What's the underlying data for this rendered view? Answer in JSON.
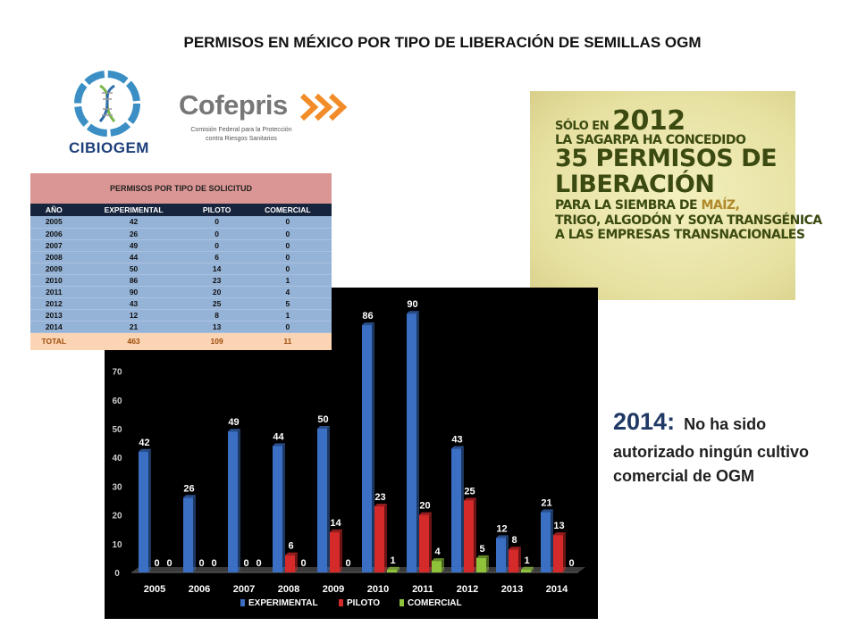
{
  "title": "PERMISOS EN MÉXICO POR TIPO DE LIBERACIÓN DE SEMILLAS OGM",
  "logos": {
    "cibiogem": "CIBIOGEM",
    "cofepris": "Cofepris",
    "cofepris_sub1": "Comisión Federal para la Protección",
    "cofepris_sub2": "contra Riesgos Sanitarios"
  },
  "poster": {
    "line1_prefix": "SÓLO EN",
    "line1_year": "2012",
    "line2": "LA SAGARPA HA CONCEDIDO",
    "line3": "35 PERMISOS DE",
    "line4": "LIBERACIÓN",
    "line5_prefix": "PARA LA SIEMBRA DE ",
    "line5_highlight": "MAÍZ,",
    "line6": "TRIGO, ALGODÓN Y SOYA TRANSGÉNICA",
    "line7": "A LAS EMPRESAS TRANSNACIONALES"
  },
  "table": {
    "caption": "PERMISOS POR TIPO DE SOLICITUD",
    "headers": [
      "AÑO",
      "EXPERIMENTAL",
      "PILOTO",
      "COMERCIAL"
    ],
    "rows": [
      [
        "2005",
        "42",
        "0",
        "0"
      ],
      [
        "2006",
        "26",
        "0",
        "0"
      ],
      [
        "2007",
        "49",
        "0",
        "0"
      ],
      [
        "2008",
        "44",
        "6",
        "0"
      ],
      [
        "2009",
        "50",
        "14",
        "0"
      ],
      [
        "2010",
        "86",
        "23",
        "1"
      ],
      [
        "2011",
        "90",
        "20",
        "4"
      ],
      [
        "2012",
        "43",
        "25",
        "5"
      ],
      [
        "2013",
        "12",
        "8",
        "1"
      ],
      [
        "2014",
        "21",
        "13",
        "0"
      ]
    ],
    "total": [
      "TOTAL",
      "463",
      "109",
      "11"
    ]
  },
  "note": {
    "year": "2014:",
    "text": "No ha sido autorizado ningún cultivo comercial de OGM"
  },
  "chart_data": {
    "type": "bar",
    "categories": [
      "2005",
      "2006",
      "2007",
      "2008",
      "2009",
      "2010",
      "2011",
      "2012",
      "2013",
      "2014"
    ],
    "series": [
      {
        "name": "EXPERIMENTAL",
        "values": [
          42,
          26,
          49,
          44,
          50,
          86,
          90,
          43,
          12,
          21
        ],
        "color": "#3a6fc4"
      },
      {
        "name": "PILOTO",
        "values": [
          0,
          0,
          0,
          6,
          14,
          23,
          20,
          25,
          8,
          13
        ],
        "color": "#d42a2a"
      },
      {
        "name": "COMERCIAL",
        "values": [
          0,
          0,
          0,
          0,
          0,
          1,
          4,
          5,
          1,
          0
        ],
        "color": "#8fc33a"
      }
    ],
    "y_ticks": [
      "0",
      "10",
      "20",
      "30",
      "40",
      "50",
      "60",
      "70"
    ],
    "ylim": [
      0,
      100
    ],
    "legend": "bottom",
    "background": "#000000"
  }
}
